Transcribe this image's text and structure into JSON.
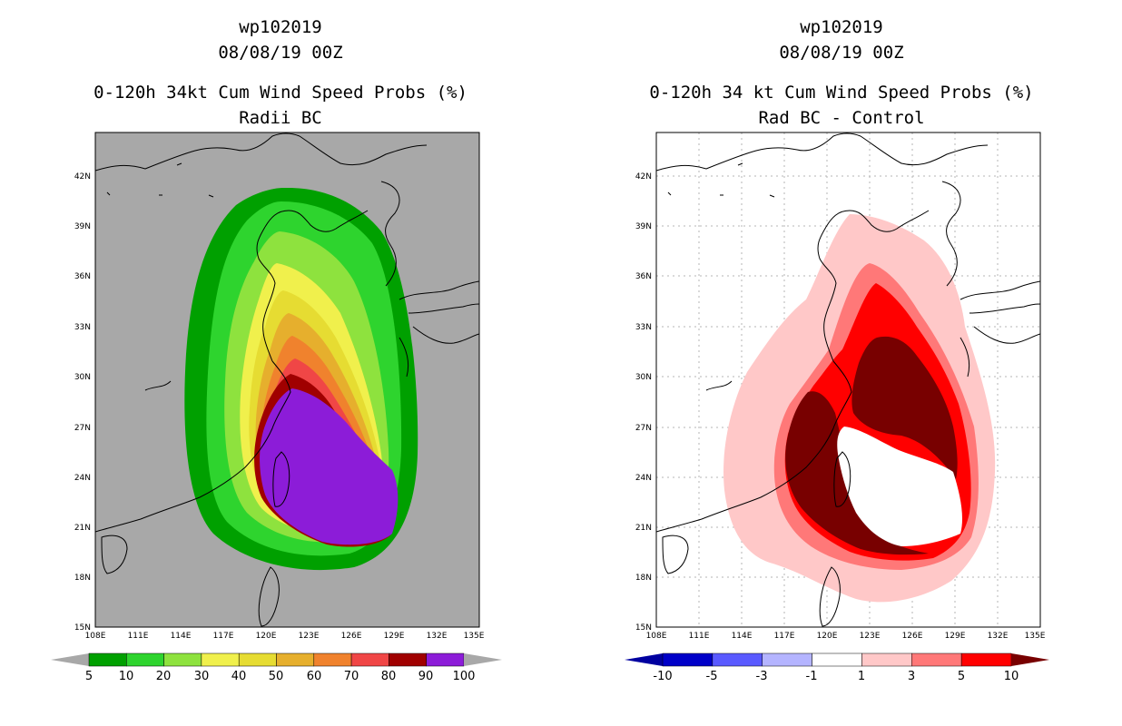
{
  "panels": [
    {
      "storm_id": "wp102019",
      "datetime": "08/08/19 00Z",
      "product": "0-120h 34kt Cum Wind Speed Probs (%)",
      "subtitle": "Radii BC",
      "map_background": "#a8a8a8",
      "lat_labels": [
        "15N",
        "18N",
        "21N",
        "24N",
        "27N",
        "30N",
        "33N",
        "36N",
        "39N",
        "42N"
      ],
      "lon_labels": [
        "108E",
        "111E",
        "114E",
        "117E",
        "120E",
        "123E",
        "126E",
        "129E",
        "132E",
        "135E"
      ],
      "colorbar": {
        "labels": [
          "5",
          "10",
          "20",
          "30",
          "40",
          "50",
          "60",
          "70",
          "80",
          "90",
          "100"
        ],
        "colors": [
          "#00a000",
          "#2ed42e",
          "#8ee23e",
          "#f0f04c",
          "#e6dc32",
          "#e6af2d",
          "#f0822d",
          "#f04646",
          "#a00000",
          "#8c1cd8"
        ],
        "under_color": "#a8a8a8",
        "over_color": "#a8a8a8"
      }
    },
    {
      "storm_id": "wp102019",
      "datetime": "08/08/19 00Z",
      "product": "0-120h 34 kt Cum Wind Speed Probs (%)",
      "subtitle": "Rad BC - Control",
      "map_background": "#ffffff",
      "lat_labels": [
        "15N",
        "18N",
        "21N",
        "24N",
        "27N",
        "30N",
        "33N",
        "36N",
        "39N",
        "42N"
      ],
      "lon_labels": [
        "108E",
        "111E",
        "114E",
        "117E",
        "120E",
        "123E",
        "126E",
        "129E",
        "132E",
        "135E"
      ],
      "colorbar": {
        "labels": [
          "-10",
          "-5",
          "-3",
          "-1",
          "1",
          "3",
          "5",
          "10"
        ],
        "colors": [
          "#0000c8",
          "#5a5aff",
          "#b4b4ff",
          "#ffffff",
          "#ffc8c8",
          "#ff7878",
          "#ff0000"
        ],
        "under_color": "#0000a0",
        "over_color": "#780000"
      }
    }
  ]
}
